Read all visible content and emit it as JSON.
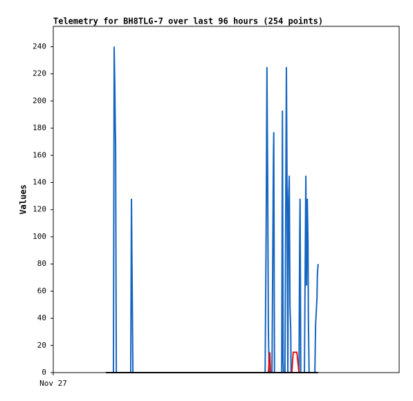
{
  "chart_data": {
    "type": "line",
    "title": "Telemetry for BH8TLG-7 over last 96 hours (254 points)",
    "y_label": "Values",
    "xlim": [
      0,
      96
    ],
    "xticks": [
      {
        "value": 0,
        "label": "Nov 27"
      }
    ],
    "ylim": [
      0,
      255
    ],
    "yticks": [
      0,
      20,
      40,
      60,
      80,
      100,
      120,
      140,
      160,
      180,
      200,
      220,
      240
    ],
    "series": [
      {
        "color": "#1565c0",
        "x": [
          14.6,
          16.7,
          16.9,
          17.1,
          17.2,
          17.3,
          17.5,
          21.5,
          21.7,
          21.9,
          22.1,
          58.8,
          59.1,
          59.3,
          59.5,
          59.7,
          59.9,
          60.7,
          61.1,
          61.2,
          61.4,
          63.4,
          63.6,
          63.8,
          63.9,
          64.3,
          64.5,
          64.7,
          64.9,
          65.1,
          65.3,
          65.5,
          65.7,
          65.9,
          66.0,
          68.2,
          68.4,
          68.5,
          68.7,
          69.7,
          69.9,
          70.1,
          70.3,
          70.5,
          70.7,
          70.8,
          71.0,
          72.6,
          72.8,
          73.0,
          73.2,
          73.3,
          73.5
        ],
        "values": [
          0,
          0,
          240,
          208,
          184,
          168,
          0,
          0,
          128,
          64,
          0,
          0,
          112,
          225,
          145,
          32,
          0,
          0,
          160,
          177,
          0,
          0,
          193,
          8,
          0,
          0,
          112,
          225,
          128,
          0,
          128,
          145,
          48,
          32,
          0,
          0,
          104,
          128,
          0,
          0,
          72,
          145,
          64,
          128,
          96,
          40,
          0,
          0,
          35,
          45,
          56,
          72,
          80
        ]
      },
      {
        "color": "#e01010",
        "x": [
          59.7,
          60.1,
          60.3,
          66.2,
          66.6,
          67.6,
          68.2
        ],
        "values": [
          0,
          15,
          0,
          0,
          15,
          15,
          0
        ]
      },
      {
        "color": "#000000",
        "x": [
          14.6,
          73.5
        ],
        "values": [
          0,
          0
        ]
      }
    ]
  }
}
